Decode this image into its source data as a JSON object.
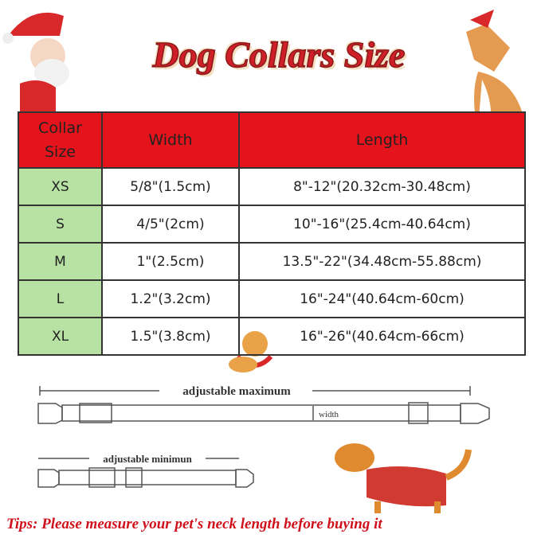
{
  "header": {
    "title": "Dog Collars Size"
  },
  "table": {
    "columns": [
      "Collar Size",
      "Width",
      "Length"
    ],
    "rows": [
      [
        "XS",
        "5/8\"(1.5cm)",
        "8\"-12\"(20.32cm-30.48cm)"
      ],
      [
        "S",
        "4/5\"(2cm)",
        "10\"-16\"(25.4cm-40.64cm)"
      ],
      [
        "M",
        "1\"(2.5cm)",
        "13.5\"-22\"(34.48cm-55.88cm)"
      ],
      [
        "L",
        "1.2\"(3.2cm)",
        "16\"-24\"(40.64cm-60cm)"
      ],
      [
        "XL",
        "1.5\"(3.8cm)",
        "16\"-26\"(40.64cm-66cm)"
      ]
    ]
  },
  "diagram": {
    "maximum_label": "adjustable maximum",
    "width_label": "width",
    "minimum_label": "adjustable minimun"
  },
  "footer": {
    "tips": "Tips: Please measure your pet's neck length before buying it"
  }
}
